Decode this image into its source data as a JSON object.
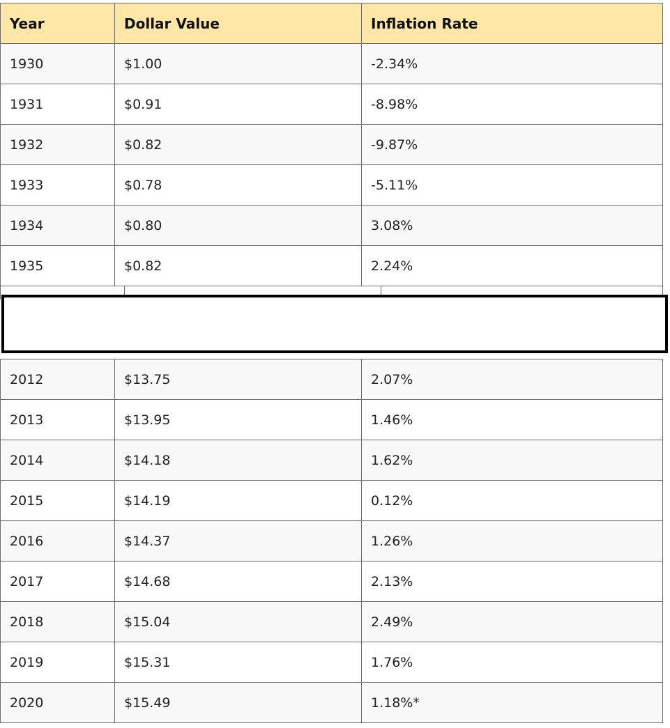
{
  "headers": [
    "Year",
    "Dollar Value",
    "Inflation Rate"
  ],
  "rows_top": [
    {
      "year": "1930",
      "value": "$1.00",
      "rate": "-2.34%"
    },
    {
      "year": "1931",
      "value": "$0.91",
      "rate": "-8.98%"
    },
    {
      "year": "1932",
      "value": "$0.82",
      "rate": "-9.87%"
    },
    {
      "year": "1933",
      "value": "$0.78",
      "rate": "-5.11%"
    },
    {
      "year": "1934",
      "value": "$0.80",
      "rate": "3.08%"
    },
    {
      "year": "1935",
      "value": "$0.82",
      "rate": "2.24%"
    }
  ],
  "rows_bottom": [
    {
      "year": "2012",
      "value": "$13.75",
      "rate": "2.07%"
    },
    {
      "year": "2013",
      "value": "$13.95",
      "rate": "1.46%"
    },
    {
      "year": "2014",
      "value": "$14.18",
      "rate": "1.62%"
    },
    {
      "year": "2015",
      "value": "$14.19",
      "rate": "0.12%"
    },
    {
      "year": "2016",
      "value": "$14.37",
      "rate": "1.26%"
    },
    {
      "year": "2017",
      "value": "$14.68",
      "rate": "2.13%"
    },
    {
      "year": "2018",
      "value": "$15.04",
      "rate": "2.49%"
    },
    {
      "year": "2019",
      "value": "$15.31",
      "rate": "1.76%"
    },
    {
      "year": "2020",
      "value": "$15.49",
      "rate": "1.18%*"
    }
  ]
}
